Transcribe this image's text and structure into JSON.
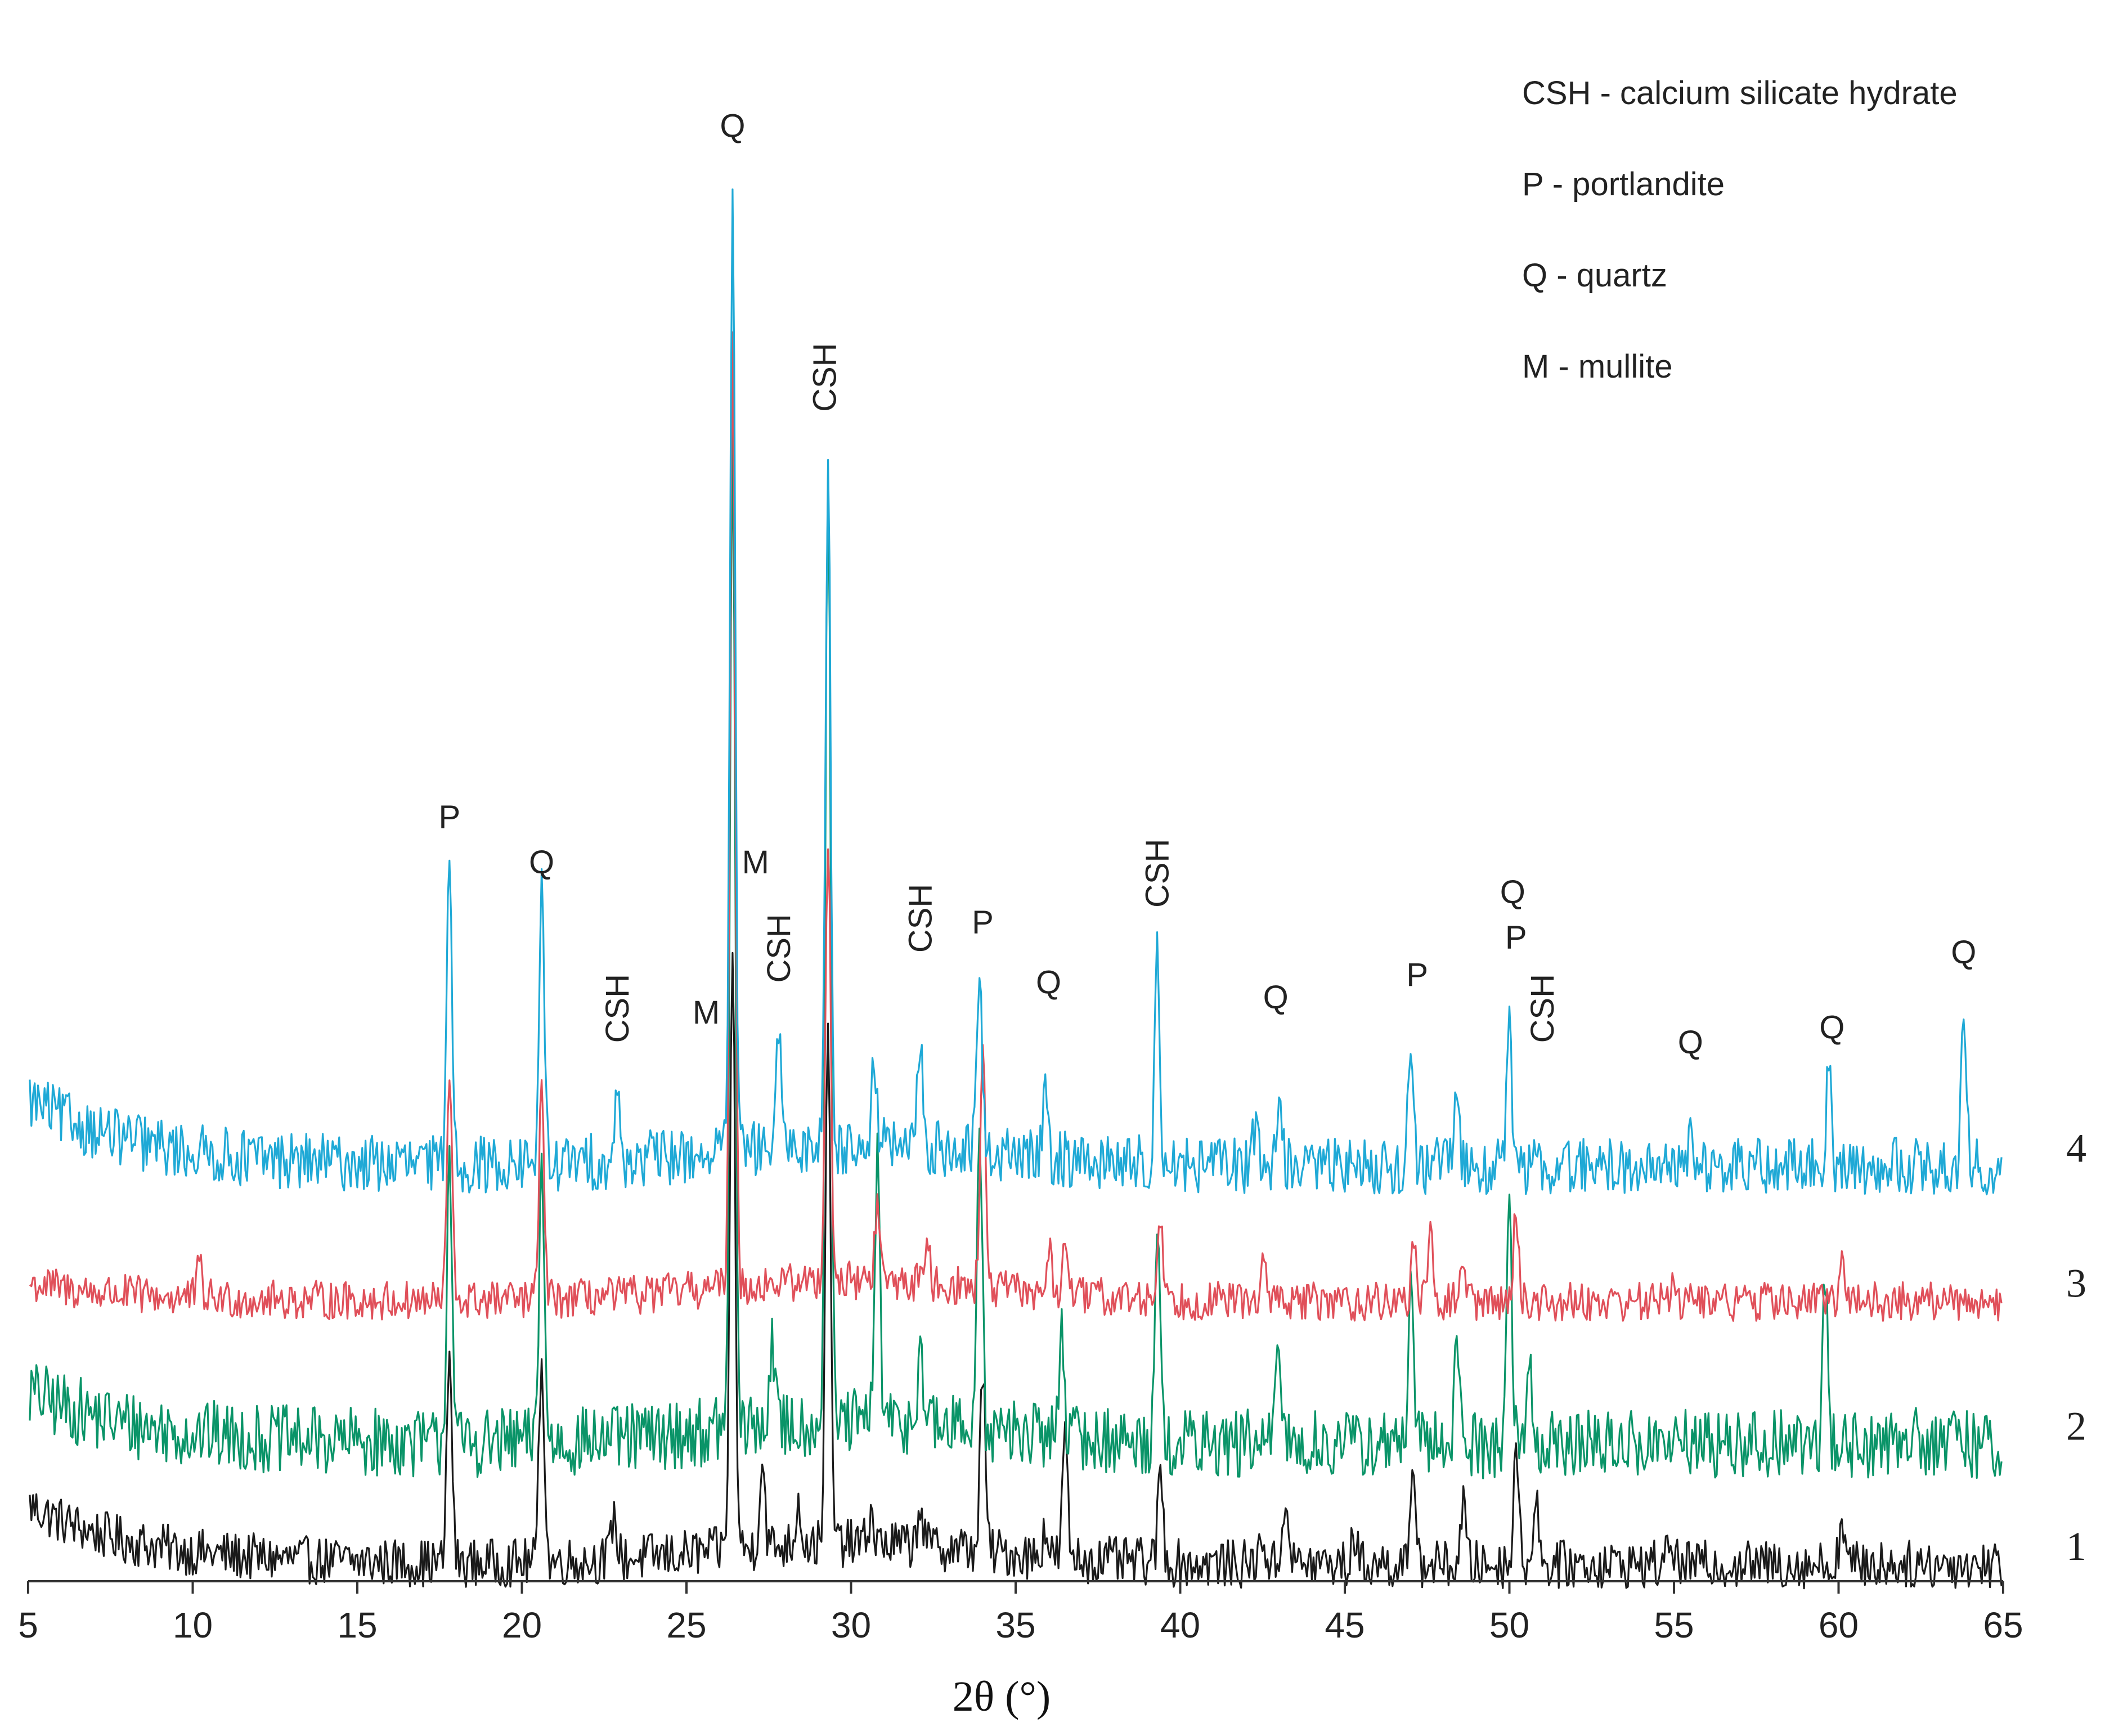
{
  "chart_data": {
    "type": "line",
    "title": "",
    "xlabel": "2θ (°)",
    "ylabel": "",
    "xlim": [
      5,
      65
    ],
    "ylim": [
      0,
      100
    ],
    "xticks": [
      5,
      10,
      15,
      20,
      25,
      30,
      35,
      40,
      45,
      50,
      55,
      60,
      65
    ],
    "grid": false,
    "legend": [
      "CSH - calcium silicate hydrate",
      "P - portlandite",
      "Q - quartz",
      "M - mullite"
    ],
    "colors": {
      "series1": "#1a1a1a",
      "series2": "#0a9468",
      "series3": "#e0505a",
      "series4": "#1fa9d6",
      "axis": "#333333"
    },
    "series": [
      {
        "name": "1",
        "baseline": 0.0,
        "noise": 1.6,
        "edge_rise": 4.0,
        "peaks": [
          [
            17.8,
            14
          ],
          [
            20.6,
            14
          ],
          [
            22.8,
            3
          ],
          [
            26.4,
            40
          ],
          [
            27.3,
            6
          ],
          [
            28.4,
            3
          ],
          [
            29.3,
            34
          ],
          [
            30.6,
            2
          ],
          [
            32.1,
            3
          ],
          [
            34.0,
            12
          ],
          [
            35.9,
            2
          ],
          [
            36.5,
            8
          ],
          [
            39.4,
            6
          ],
          [
            42.5,
            2
          ],
          [
            43.2,
            5
          ],
          [
            45.3,
            2
          ],
          [
            47.1,
            6
          ],
          [
            48.6,
            4
          ],
          [
            50.2,
            8
          ],
          [
            50.8,
            5
          ],
          [
            54.9,
            2
          ],
          [
            60.1,
            3
          ]
        ]
      },
      {
        "name": "2",
        "baseline": 8.0,
        "noise": 2.3,
        "edge_rise": 3.5,
        "peaks": [
          [
            17.8,
            20
          ],
          [
            20.6,
            19
          ],
          [
            26.4,
            66
          ],
          [
            27.6,
            6
          ],
          [
            29.3,
            64
          ],
          [
            30.8,
            18
          ],
          [
            32.1,
            6
          ],
          [
            33.9,
            22
          ],
          [
            36.4,
            8
          ],
          [
            39.3,
            15
          ],
          [
            43.0,
            7
          ],
          [
            47.0,
            10
          ],
          [
            48.4,
            7
          ],
          [
            50.0,
            16
          ],
          [
            50.6,
            6
          ],
          [
            59.6,
            11
          ],
          [
            62.3,
            3
          ]
        ]
      },
      {
        "name": "3",
        "baseline": 17.5,
        "noise": 1.3,
        "edge_rise": 1.2,
        "peaks": [
          [
            17.8,
            15
          ],
          [
            20.6,
            14
          ],
          [
            10.2,
            2
          ],
          [
            26.4,
            64
          ],
          [
            29.3,
            30
          ],
          [
            30.8,
            5
          ],
          [
            32.3,
            3
          ],
          [
            34.0,
            16
          ],
          [
            36.0,
            3
          ],
          [
            36.5,
            4
          ],
          [
            39.4,
            6
          ],
          [
            42.5,
            3
          ],
          [
            47.1,
            4
          ],
          [
            47.6,
            4
          ],
          [
            48.6,
            3
          ],
          [
            50.2,
            6
          ],
          [
            55.0,
            2
          ],
          [
            60.1,
            4
          ]
        ]
      },
      {
        "name": "4",
        "baseline": 26.5,
        "noise": 1.9,
        "edge_rise": 4.5,
        "peaks": [
          [
            17.8,
            21
          ],
          [
            20.6,
            18
          ],
          [
            22.9,
            4
          ],
          [
            26.4,
            63
          ],
          [
            27.8,
            7
          ],
          [
            29.3,
            45
          ],
          [
            30.7,
            6
          ],
          [
            32.1,
            7
          ],
          [
            33.9,
            12
          ],
          [
            35.9,
            5
          ],
          [
            39.3,
            14
          ],
          [
            42.3,
            3
          ],
          [
            43.0,
            5
          ],
          [
            47.0,
            7
          ],
          [
            48.4,
            5
          ],
          [
            50.0,
            9
          ],
          [
            55.5,
            2
          ],
          [
            59.7,
            6
          ],
          [
            63.8,
            10
          ]
        ]
      }
    ],
    "series_labels": [
      "1",
      "2",
      "3",
      "4"
    ],
    "peak_labels": [
      {
        "text": "P",
        "x": 17.8,
        "y": 49
      },
      {
        "text": "Q",
        "x": 20.6,
        "y": 46
      },
      {
        "text": "CSH",
        "x": 22.9,
        "y": 37,
        "rotate": true
      },
      {
        "text": "M",
        "x": 25.6,
        "y": 36
      },
      {
        "text": "Q",
        "x": 26.4,
        "y": 95
      },
      {
        "text": "M",
        "x": 27.1,
        "y": 46
      },
      {
        "text": "CSH",
        "x": 27.8,
        "y": 41,
        "rotate": true
      },
      {
        "text": "CSH",
        "x": 29.2,
        "y": 79,
        "rotate": true
      },
      {
        "text": "CSH",
        "x": 32.1,
        "y": 43,
        "rotate": true
      },
      {
        "text": "P",
        "x": 34.0,
        "y": 42
      },
      {
        "text": "Q",
        "x": 36.0,
        "y": 38
      },
      {
        "text": "CSH",
        "x": 39.3,
        "y": 46,
        "rotate": true
      },
      {
        "text": "Q",
        "x": 42.9,
        "y": 37
      },
      {
        "text": "P",
        "x": 47.2,
        "y": 38.5
      },
      {
        "text": "Q",
        "x": 50.1,
        "y": 44
      },
      {
        "text": "P",
        "x": 50.2,
        "y": 41
      },
      {
        "text": "CSH",
        "x": 51.0,
        "y": 37,
        "rotate": true
      },
      {
        "text": "Q",
        "x": 55.5,
        "y": 34
      },
      {
        "text": "Q",
        "x": 59.8,
        "y": 35
      },
      {
        "text": "Q",
        "x": 63.8,
        "y": 40
      }
    ]
  }
}
